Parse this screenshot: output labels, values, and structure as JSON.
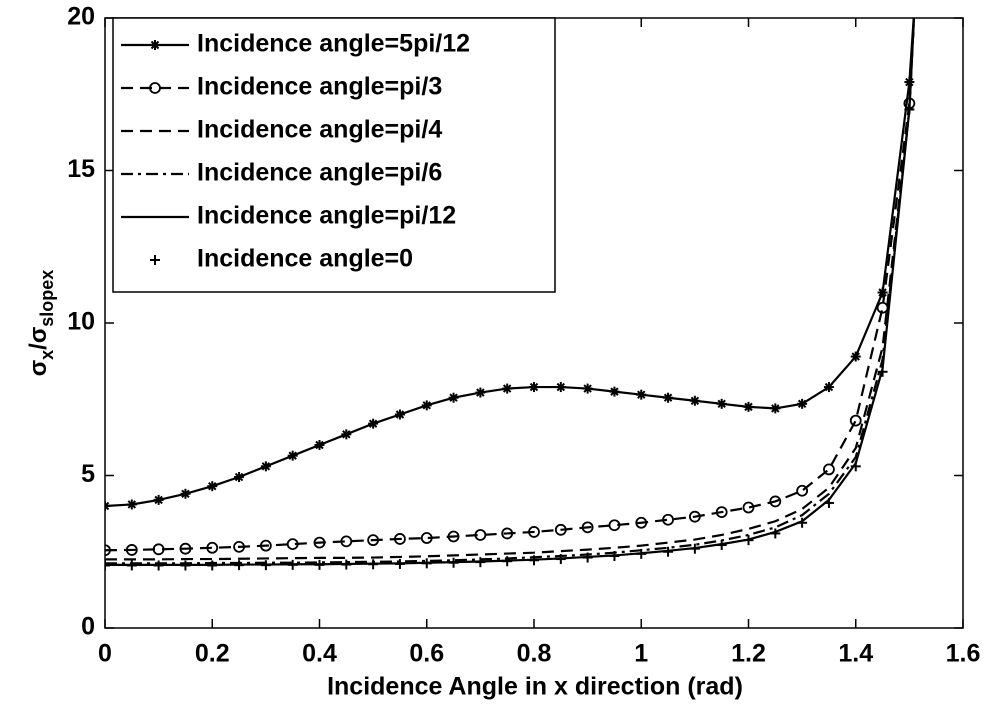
{
  "chart_data": {
    "type": "line",
    "xlabel": "Incidence Angle in x direction (rad)",
    "ylabel": [
      "σ",
      "x",
      "/σ",
      "slopex"
    ],
    "x": [
      0,
      0.05,
      0.1,
      0.15,
      0.2,
      0.25,
      0.3,
      0.35,
      0.4,
      0.45,
      0.5,
      0.55,
      0.6,
      0.65,
      0.7,
      0.75,
      0.8,
      0.85,
      0.9,
      0.95,
      1.0,
      1.05,
      1.1,
      1.15,
      1.2,
      1.25,
      1.3,
      1.35,
      1.4,
      1.45,
      1.5,
      1.51
    ],
    "xlim": [
      0,
      1.6
    ],
    "xticks": [
      0,
      0.2,
      0.4,
      0.6,
      0.8,
      1,
      1.2,
      1.4,
      1.6
    ],
    "ylim": [
      0,
      20
    ],
    "yticks": [
      0,
      5,
      10,
      15,
      20
    ],
    "grid": false,
    "legend": "upper left",
    "series": [
      {
        "name": "Incidence angle=5pi/12",
        "color": "#000000",
        "linestyle": "solid",
        "marker": "asterisk",
        "values": [
          4.0,
          4.05,
          4.2,
          4.4,
          4.65,
          4.95,
          5.3,
          5.65,
          6.0,
          6.35,
          6.7,
          7.0,
          7.3,
          7.55,
          7.72,
          7.85,
          7.9,
          7.9,
          7.85,
          7.75,
          7.65,
          7.55,
          7.45,
          7.35,
          7.25,
          7.2,
          7.35,
          7.9,
          8.9,
          11.0,
          17.9,
          20.5
        ]
      },
      {
        "name": "Incidence angle=pi/3",
        "color": "#000000",
        "linestyle": "dashed",
        "marker": "circle",
        "values": [
          2.55,
          2.56,
          2.58,
          2.6,
          2.63,
          2.66,
          2.7,
          2.75,
          2.8,
          2.84,
          2.88,
          2.92,
          2.95,
          3.0,
          3.05,
          3.1,
          3.15,
          3.22,
          3.3,
          3.37,
          3.45,
          3.55,
          3.65,
          3.8,
          3.95,
          4.15,
          4.5,
          5.2,
          6.8,
          10.5,
          17.2,
          20.5
        ]
      },
      {
        "name": "Incidence angle=pi/4",
        "color": "#000000",
        "linestyle": "dashed",
        "marker": "none",
        "values": [
          2.25,
          2.25,
          2.25,
          2.26,
          2.26,
          2.27,
          2.28,
          2.29,
          2.3,
          2.3,
          2.31,
          2.33,
          2.35,
          2.38,
          2.41,
          2.44,
          2.47,
          2.52,
          2.57,
          2.63,
          2.7,
          2.8,
          2.9,
          3.05,
          3.25,
          3.5,
          3.9,
          4.6,
          5.9,
          9.2,
          17.0,
          20.5
        ]
      },
      {
        "name": "Incidence angle=pi/6",
        "color": "#000000",
        "linestyle": "dashdot",
        "marker": "none",
        "values": [
          2.12,
          2.12,
          2.12,
          2.12,
          2.13,
          2.13,
          2.14,
          2.14,
          2.15,
          2.16,
          2.17,
          2.18,
          2.2,
          2.22,
          2.25,
          2.28,
          2.32,
          2.36,
          2.41,
          2.47,
          2.55,
          2.63,
          2.73,
          2.87,
          3.05,
          3.3,
          3.7,
          4.4,
          5.6,
          8.8,
          17.0,
          20.5
        ]
      },
      {
        "name": "Incidence angle=pi/12",
        "color": "#000000",
        "linestyle": "solid",
        "marker": "none",
        "values": [
          2.07,
          2.07,
          2.07,
          2.07,
          2.07,
          2.08,
          2.08,
          2.09,
          2.09,
          2.1,
          2.11,
          2.12,
          2.14,
          2.16,
          2.18,
          2.21,
          2.24,
          2.28,
          2.33,
          2.38,
          2.45,
          2.53,
          2.62,
          2.75,
          2.9,
          3.15,
          3.5,
          4.2,
          5.4,
          8.5,
          17.0,
          20.5
        ]
      },
      {
        "name": "Incidence angle=0",
        "color": "#000000",
        "linestyle": "none",
        "marker": "plus",
        "values": [
          2.05,
          2.05,
          2.05,
          2.05,
          2.05,
          2.06,
          2.06,
          2.07,
          2.07,
          2.08,
          2.09,
          2.1,
          2.12,
          2.14,
          2.16,
          2.19,
          2.22,
          2.26,
          2.31,
          2.36,
          2.43,
          2.5,
          2.6,
          2.72,
          2.88,
          3.1,
          3.45,
          4.1,
          5.3,
          8.4,
          17.0,
          20.5
        ]
      }
    ]
  }
}
